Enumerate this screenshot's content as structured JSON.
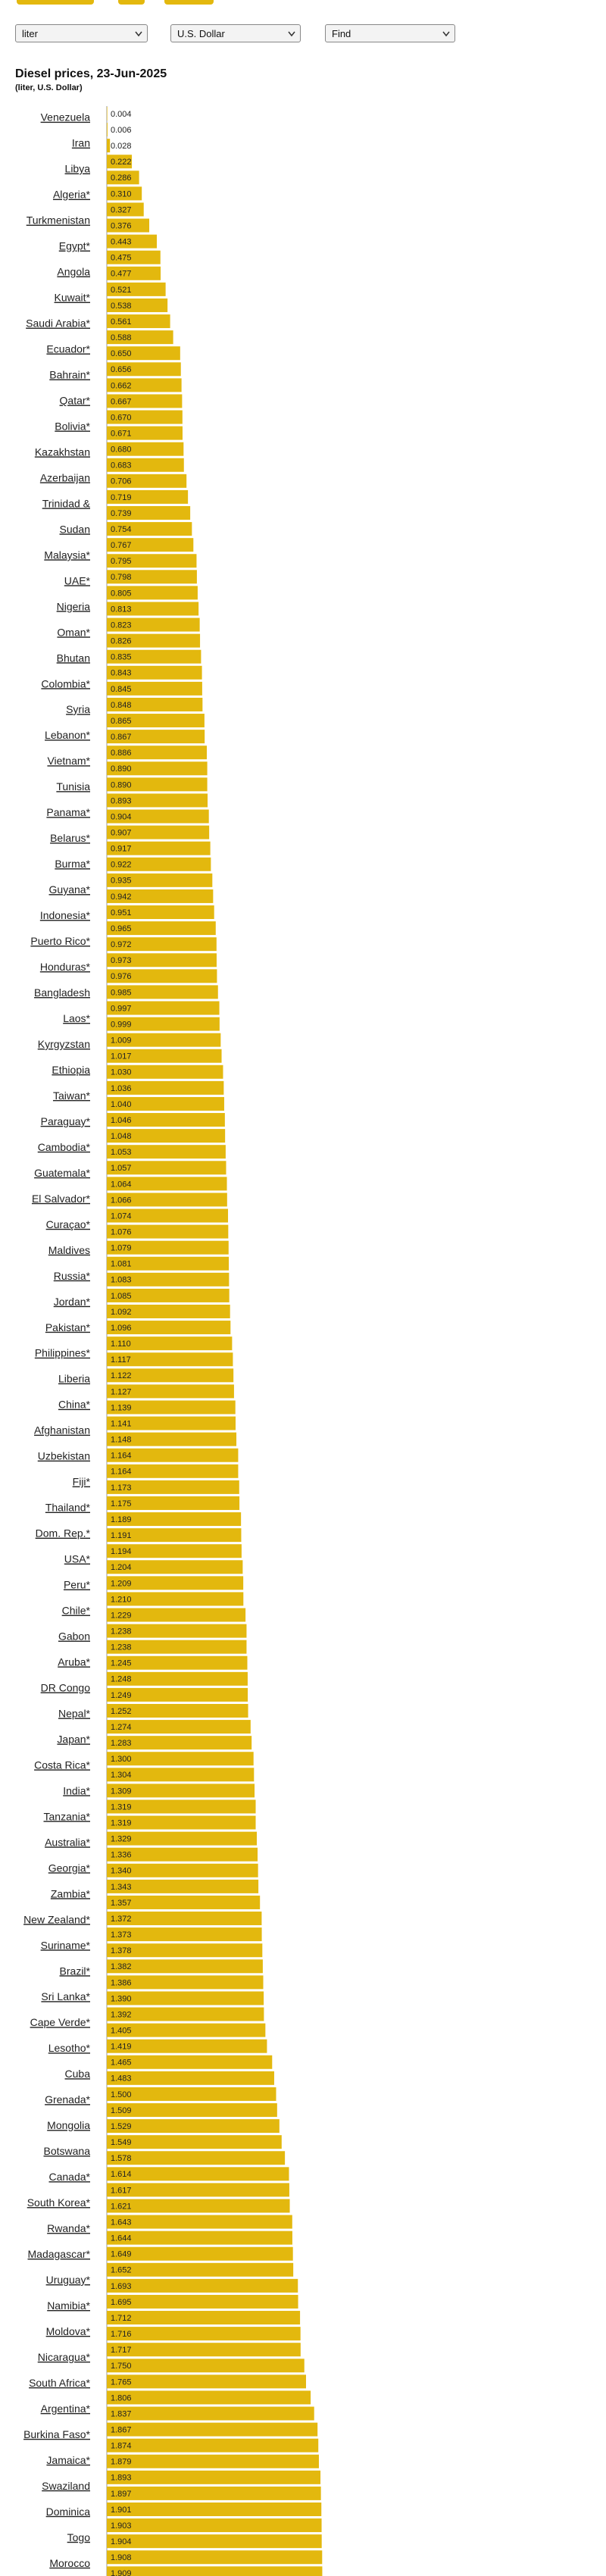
{
  "controls": {
    "unit": "liter",
    "currency": "U.S. Dollar",
    "find": "Find"
  },
  "chart_data": {
    "type": "bar",
    "orientation": "horizontal",
    "title": "Diesel prices, 23-Jun-2025",
    "subtitle": "(liter, U.S. Dollar)",
    "color": "#e3b80e",
    "xlim": [
      0,
      2
    ],
    "values": [
      0.004,
      0.006,
      0.028,
      0.222,
      0.286,
      0.31,
      0.327,
      0.376,
      0.443,
      0.475,
      0.477,
      0.521,
      0.538,
      0.561,
      0.588,
      0.65,
      0.656,
      0.662,
      0.667,
      0.67,
      0.671,
      0.68,
      0.683,
      0.706,
      0.719,
      0.739,
      0.754,
      0.767,
      0.795,
      0.798,
      0.805,
      0.813,
      0.823,
      0.826,
      0.835,
      0.843,
      0.845,
      0.848,
      0.865,
      0.867,
      0.886,
      0.89,
      0.89,
      0.893,
      0.904,
      0.907,
      0.917,
      0.922,
      0.935,
      0.942,
      0.951,
      0.965,
      0.972,
      0.973,
      0.976,
      0.985,
      0.997,
      0.999,
      1.009,
      1.017,
      1.03,
      1.036,
      1.04,
      1.046,
      1.048,
      1.053,
      1.057,
      1.064,
      1.066,
      1.074,
      1.076,
      1.079,
      1.081,
      1.083,
      1.085,
      1.092,
      1.096,
      1.11,
      1.117,
      1.122,
      1.127,
      1.139,
      1.141,
      1.148,
      1.164,
      1.164,
      1.173,
      1.175,
      1.189,
      1.191,
      1.194,
      1.204,
      1.209,
      1.21,
      1.229,
      1.238,
      1.238,
      1.245,
      1.248,
      1.249,
      1.252,
      1.274,
      1.283,
      1.3,
      1.304,
      1.309,
      1.319,
      1.319,
      1.329,
      1.336,
      1.34,
      1.343,
      1.357,
      1.372,
      1.373,
      1.378,
      1.382,
      1.386,
      1.39,
      1.392,
      1.405,
      1.419,
      1.465,
      1.483,
      1.5,
      1.509,
      1.529,
      1.549,
      1.578,
      1.614,
      1.617,
      1.621,
      1.643,
      1.644,
      1.649,
      1.652,
      1.693,
      1.695,
      1.712,
      1.716,
      1.717,
      1.75,
      1.765,
      1.806,
      1.837,
      1.867,
      1.874,
      1.879,
      1.893,
      1.897,
      1.901,
      1.903,
      1.904,
      1.908,
      1.909
    ],
    "value_labels": [
      "0.004",
      "0.006",
      "0.028",
      "0.222",
      "0.286",
      "0.310",
      "0.327",
      "0.376",
      "0.443",
      "0.475",
      "0.477",
      "0.521",
      "0.538",
      "0.561",
      "0.588",
      "0.650",
      "0.656",
      "0.662",
      "0.667",
      "0.670",
      "0.671",
      "0.680",
      "0.683",
      "0.706",
      "0.719",
      "0.739",
      "0.754",
      "0.767",
      "0.795",
      "0.798",
      "0.805",
      "0.813",
      "0.823",
      "0.826",
      "0.835",
      "0.843",
      "0.845",
      "0.848",
      "0.865",
      "0.867",
      "0.886",
      "0.890",
      "0.890",
      "0.893",
      "0.904",
      "0.907",
      "0.917",
      "0.922",
      "0.935",
      "0.942",
      "0.951",
      "0.965",
      "0.972",
      "0.973",
      "0.976",
      "0.985",
      "0.997",
      "0.999",
      "1.009",
      "1.017",
      "1.030",
      "1.036",
      "1.040",
      "1.046",
      "1.048",
      "1.053",
      "1.057",
      "1.064",
      "1.066",
      "1.074",
      "1.076",
      "1.079",
      "1.081",
      "1.083",
      "1.085",
      "1.092",
      "1.096",
      "1.110",
      "1.117",
      "1.122",
      "1.127",
      "1.139",
      "1.141",
      "1.148",
      "1.164",
      "1.164",
      "1.173",
      "1.175",
      "1.189",
      "1.191",
      "1.194",
      "1.204",
      "1.209",
      "1.210",
      "1.229",
      "1.238",
      "1.238",
      "1.245",
      "1.248",
      "1.249",
      "1.252",
      "1.274",
      "1.283",
      "1.300",
      "1.304",
      "1.309",
      "1.319",
      "1.319",
      "1.329",
      "1.336",
      "1.340",
      "1.343",
      "1.357",
      "1.372",
      "1.373",
      "1.378",
      "1.382",
      "1.386",
      "1.390",
      "1.392",
      "1.405",
      "1.419",
      "1.465",
      "1.483",
      "1.500",
      "1.509",
      "1.529",
      "1.549",
      "1.578",
      "1.614",
      "1.617",
      "1.621",
      "1.643",
      "1.644",
      "1.649",
      "1.652",
      "1.693",
      "1.695",
      "1.712",
      "1.716",
      "1.717",
      "1.750",
      "1.765",
      "1.806",
      "1.837",
      "1.867",
      "1.874",
      "1.879",
      "1.893",
      "1.897",
      "1.901",
      "1.903",
      "1.904",
      "1.908",
      "1.909"
    ]
  },
  "country_links": [
    "Venezuela",
    "Iran",
    "Libya",
    "Algeria*",
    "Turkmenistan",
    "Egypt*",
    "Angola",
    "Kuwait*",
    "Saudi Arabia*",
    "Ecuador*",
    "Bahrain*",
    "Qatar*",
    "Bolivia*",
    "Kazakhstan",
    "Azerbaijan",
    "Trinidad &",
    "Sudan",
    "Malaysia*",
    "UAE*",
    "Nigeria",
    "Oman*",
    "Bhutan",
    "Colombia*",
    "Syria",
    "Lebanon*",
    "Vietnam*",
    "Tunisia",
    "Panama*",
    "Belarus*",
    "Burma*",
    "Guyana*",
    "Indonesia*",
    "Puerto Rico*",
    "Honduras*",
    "Bangladesh",
    "Laos*",
    "Kyrgyzstan",
    "Ethiopia",
    "Taiwan*",
    "Paraguay*",
    "Cambodia*",
    "Guatemala*",
    "El Salvador*",
    "Curaçao*",
    "Maldives",
    "Russia*",
    "Jordan*",
    "Pakistan*",
    "Philippines*",
    "Liberia",
    "China*",
    "Afghanistan",
    "Uzbekistan",
    "Fiji*",
    "Thailand*",
    "Dom. Rep.*",
    "USA*",
    "Peru*",
    "Chile*",
    "Gabon",
    "Aruba*",
    "DR Congo",
    "Nepal*",
    "Japan*",
    "Costa Rica*",
    "India*",
    "Tanzania*",
    "Australia*",
    "Georgia*",
    "Zambia*",
    "New Zealand*",
    "Suriname*",
    "Brazil*",
    "Sri Lanka*",
    "Cape Verde*",
    "Lesotho*",
    "Cuba",
    "Grenada*",
    "Mongolia",
    "Botswana",
    "Canada*",
    "South Korea*",
    "Rwanda*",
    "Madagascar*",
    "Uruguay*",
    "Namibia*",
    "Moldova*",
    "Nicaragua*",
    "South Africa*",
    "Argentina*",
    "Burkina Faso*",
    "Jamaica*",
    "Swaziland",
    "Dominica",
    "Togo",
    "Morocco"
  ]
}
